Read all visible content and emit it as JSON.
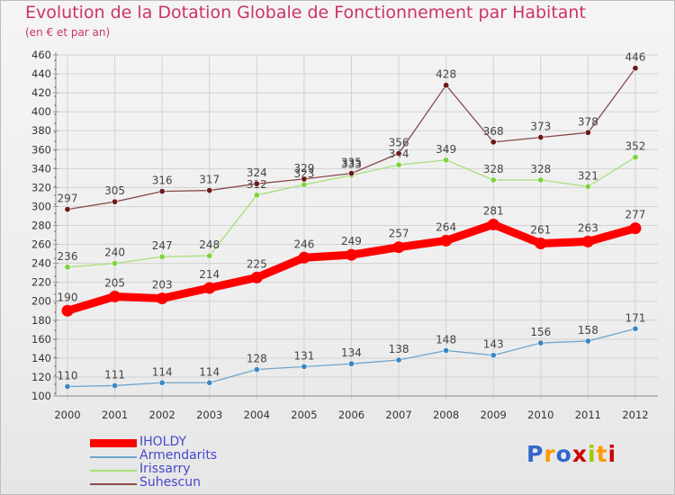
{
  "title": "Evolution de la Dotation Globale de Fonctionnement par Habitant",
  "subtitle": "(en € et par an)",
  "logo_text": "Proxiti",
  "logo_colors": [
    "#3366cc",
    "#ff9900",
    "#3366cc",
    "#cc0000",
    "#99cc00",
    "#ff9900",
    "#cc0000"
  ],
  "chart_data": {
    "type": "line",
    "title": "Evolution de la Dotation Globale de Fonctionnement par Habitant",
    "subtitle": "(en € et par an)",
    "x": [
      "2000",
      "2001",
      "2002",
      "2003",
      "2004",
      "2005",
      "2006",
      "2007",
      "2008",
      "2009",
      "2010",
      "2011",
      "2012"
    ],
    "ylim": [
      100,
      460
    ],
    "yticks": [
      100,
      120,
      140,
      160,
      180,
      200,
      220,
      240,
      260,
      280,
      300,
      320,
      340,
      360,
      380,
      400,
      420,
      440,
      460
    ],
    "grid": true,
    "legend_position": "bottom-left",
    "series": [
      {
        "name": "IHOLDY",
        "color": "#ff0000",
        "emphasis": true,
        "values": [
          190,
          205,
          203,
          214,
          225,
          246,
          249,
          257,
          264,
          281,
          261,
          263,
          277
        ]
      },
      {
        "name": "Armendarits",
        "color": "#6ea6cc",
        "marker": "#3c87c4",
        "values": [
          110,
          111,
          114,
          114,
          128,
          131,
          134,
          138,
          148,
          143,
          156,
          158,
          171
        ]
      },
      {
        "name": "Irissarry",
        "color": "#a6e07a",
        "marker": "#7ed23c",
        "values": [
          236,
          240,
          247,
          248,
          312,
          323,
          333,
          344,
          349,
          328,
          328,
          321,
          352
        ]
      },
      {
        "name": "Suhescun",
        "color": "#8a4a4a",
        "marker": "#6b1a1a",
        "values": [
          297,
          305,
          316,
          317,
          324,
          329,
          335,
          356,
          428,
          368,
          373,
          378,
          446
        ]
      }
    ]
  }
}
